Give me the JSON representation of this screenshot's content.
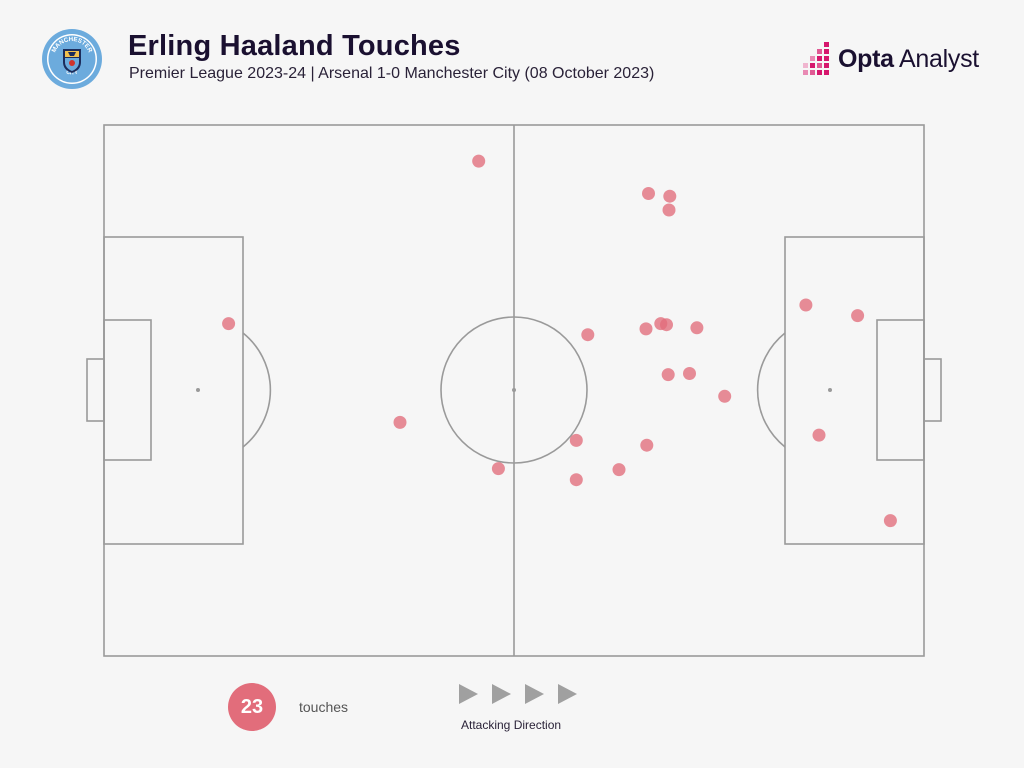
{
  "header": {
    "title": "Erling Haaland Touches",
    "subtitle": "Premier League 2023-24 | Arsenal 1-0 Manchester City (08 October 2023)"
  },
  "crest": {
    "text_top": "MANCHESTER",
    "text_bottom": "CITY",
    "icon": "manchester-city-crest-icon",
    "colors": {
      "ring": "#6cabdd",
      "inner": "#1c2c5b",
      "gold": "#f2c14e",
      "red": "#d0342c"
    }
  },
  "brand": {
    "bold": "Opta",
    "regular": "Analyst",
    "icon": "opta-analyst-logo-icon",
    "colors": {
      "magenta": "#d6176d",
      "dark": "#1a1030"
    }
  },
  "footer": {
    "count": "23",
    "count_label": "touches",
    "direction_label": "Attacking Direction",
    "direction_icon": "play-arrow-icon"
  },
  "colors": {
    "point": "#e26d7b",
    "line": "#9a9a9a",
    "background": "#f6f6f6",
    "badge": "#e26d7b"
  },
  "chart_data": {
    "type": "scatter",
    "title": "Erling Haaland Touches",
    "subtitle": "Premier League 2023-24 | Arsenal 1-0 Manchester City (08 October 2023)",
    "xlim": [
      0,
      100
    ],
    "ylim": [
      0,
      100
    ],
    "x_direction": "attacking left to right",
    "series": [
      {
        "name": "touches",
        "color": "#e26d7b",
        "points": [
          {
            "x": 45.7,
            "y": 93.2
          },
          {
            "x": 66.4,
            "y": 87.1
          },
          {
            "x": 69.0,
            "y": 86.6
          },
          {
            "x": 68.9,
            "y": 84.0
          },
          {
            "x": 85.6,
            "y": 66.1
          },
          {
            "x": 91.9,
            "y": 64.1
          },
          {
            "x": 15.2,
            "y": 62.6
          },
          {
            "x": 67.9,
            "y": 62.6
          },
          {
            "x": 68.6,
            "y": 62.4
          },
          {
            "x": 72.3,
            "y": 61.8
          },
          {
            "x": 66.1,
            "y": 61.6
          },
          {
            "x": 59.0,
            "y": 60.5
          },
          {
            "x": 68.8,
            "y": 53.0
          },
          {
            "x": 71.4,
            "y": 53.2
          },
          {
            "x": 75.7,
            "y": 48.9
          },
          {
            "x": 36.1,
            "y": 44.0
          },
          {
            "x": 87.2,
            "y": 41.6
          },
          {
            "x": 57.6,
            "y": 40.6
          },
          {
            "x": 66.2,
            "y": 39.7
          },
          {
            "x": 48.1,
            "y": 35.3
          },
          {
            "x": 62.8,
            "y": 35.1
          },
          {
            "x": 57.6,
            "y": 33.2
          },
          {
            "x": 95.9,
            "y": 25.5
          }
        ]
      }
    ]
  }
}
